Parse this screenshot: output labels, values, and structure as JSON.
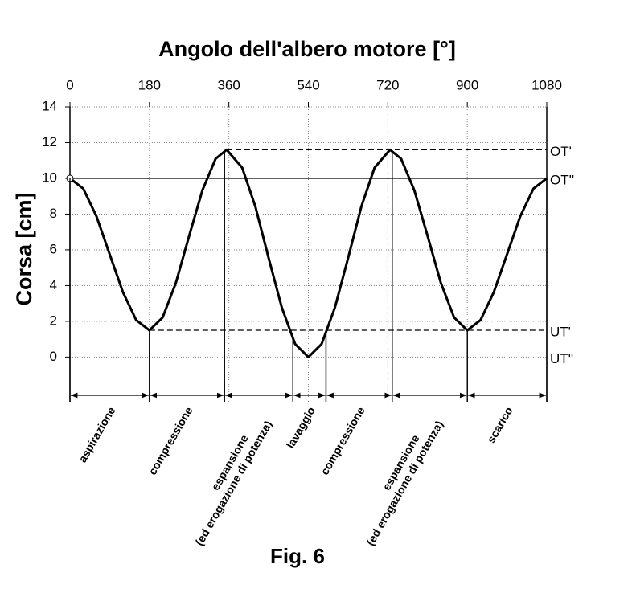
{
  "chart_data": {
    "type": "line",
    "title": "Angolo dell'albero motore [°]",
    "y_label": "Corsa [cm]",
    "caption": "Fig. 6",
    "x": [
      0,
      30,
      60,
      90,
      120,
      150,
      180,
      210,
      240,
      270,
      300,
      330,
      355,
      390,
      420,
      450,
      480,
      510,
      540,
      570,
      600,
      630,
      660,
      690,
      725,
      750,
      780,
      810,
      840,
      870,
      900,
      930,
      960,
      990,
      1020,
      1050,
      1080
    ],
    "series": [
      {
        "color": "#000000",
        "values": [
          10,
          9.43,
          7.88,
          5.75,
          3.63,
          2.07,
          1.5,
          2.22,
          4.16,
          6.78,
          9.33,
          11.1,
          11.6,
          10.6,
          8.42,
          5.54,
          2.76,
          0.73,
          0,
          0.73,
          2.76,
          5.54,
          8.42,
          10.6,
          11.6,
          11.1,
          9.33,
          6.78,
          4.16,
          2.22,
          1.5,
          2.07,
          3.63,
          5.75,
          7.88,
          9.43,
          10
        ]
      }
    ],
    "xlim": [
      0,
      1080
    ],
    "xticks": [
      0,
      180,
      360,
      540,
      720,
      900,
      1080
    ],
    "ylim": [
      -2.5,
      14
    ],
    "yticks": [
      0,
      2,
      4,
      6,
      8,
      10,
      12,
      14
    ],
    "grid": true,
    "annotations": [
      {
        "label": "OT'",
        "y": 11.6,
        "from": 355,
        "style": "dashed"
      },
      {
        "label": "OT''",
        "y": 10,
        "from": 0,
        "style": "solid"
      },
      {
        "label": "UT'",
        "y": 1.5,
        "from": 180,
        "style": "dashed"
      },
      {
        "label": "UT''",
        "y": 0,
        "from": 350,
        "style": "none"
      }
    ],
    "phases": [
      {
        "lines": [
          "aspirazione"
        ],
        "start": 0,
        "end": 180
      },
      {
        "lines": [
          "compressione"
        ],
        "start": 180,
        "end": 350
      },
      {
        "lines": [
          "espansione",
          "(ed erogazione di potenza)"
        ],
        "start": 350,
        "end": 505
      },
      {
        "lines": [
          "lavaggio"
        ],
        "start": 505,
        "end": 580
      },
      {
        "lines": [
          "compressione"
        ],
        "start": 580,
        "end": 730
      },
      {
        "lines": [
          "espansione",
          "(ed erogazione di potenza)"
        ],
        "start": 730,
        "end": 900
      },
      {
        "lines": [
          "scarico"
        ],
        "start": 900,
        "end": 1080
      }
    ]
  }
}
